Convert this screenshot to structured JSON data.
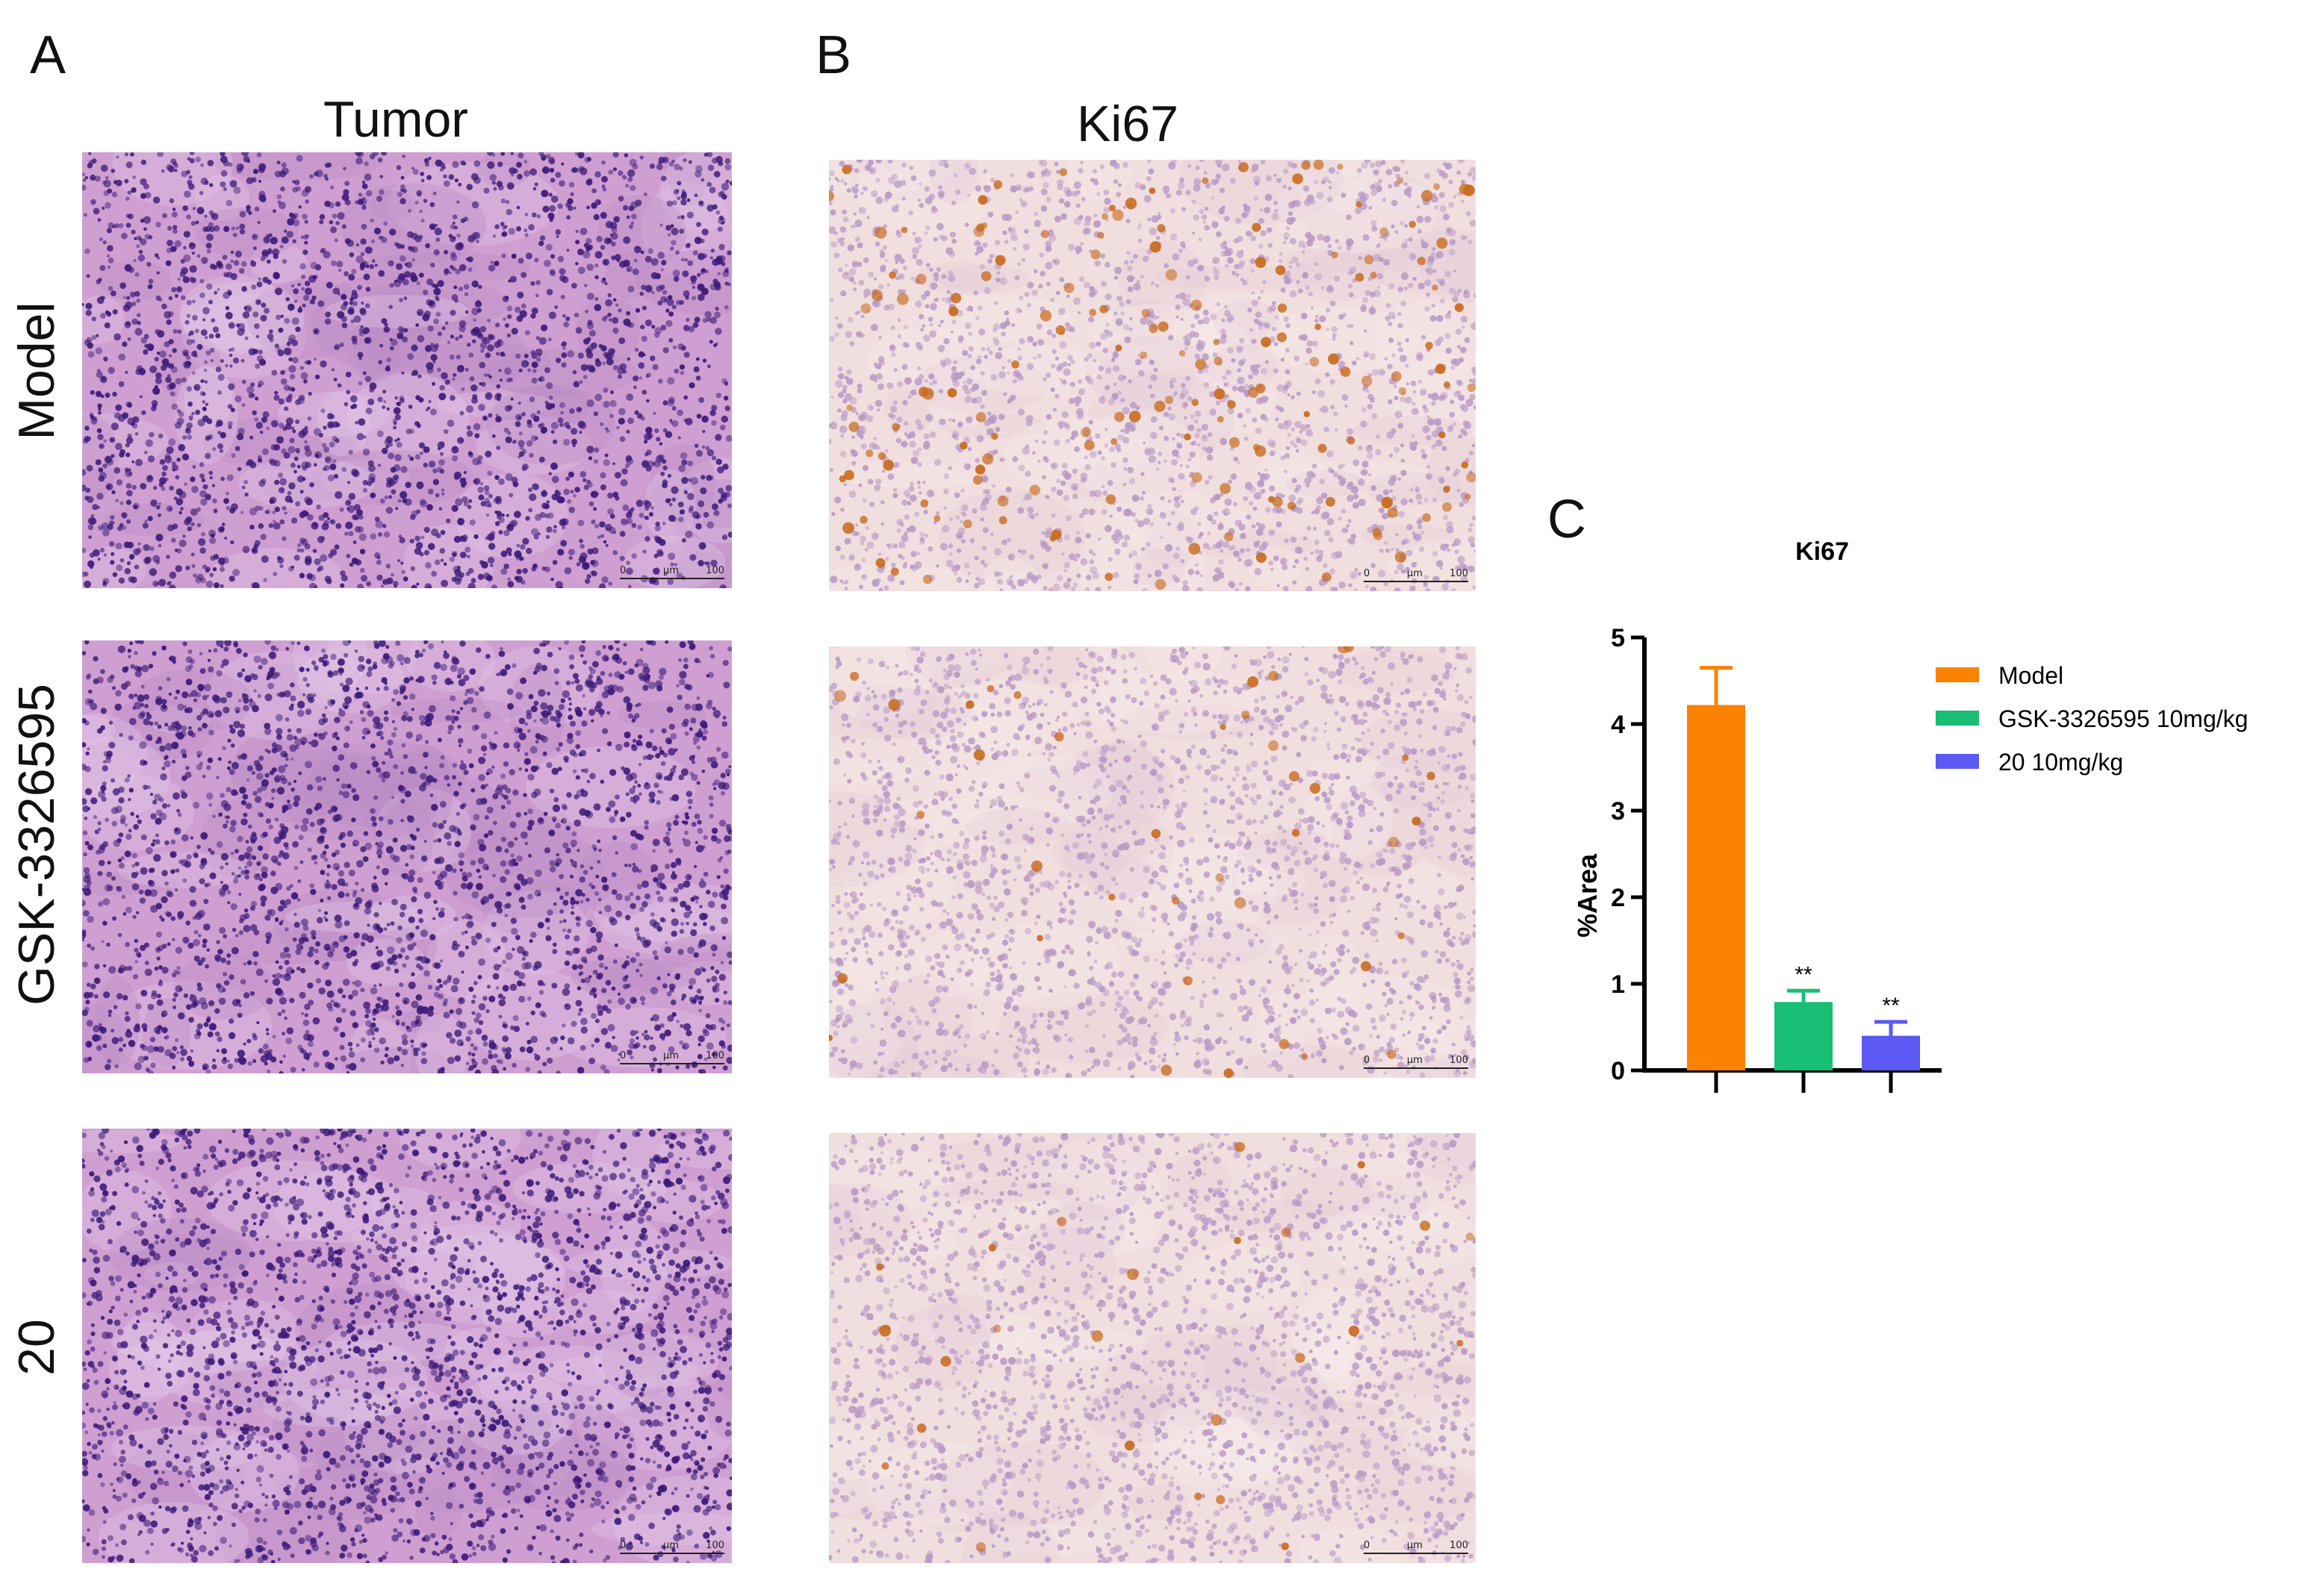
{
  "panels": {
    "a": {
      "letter": "A",
      "title": "Tumor"
    },
    "b": {
      "letter": "B",
      "title": "Ki67"
    },
    "c": {
      "letter": "C"
    }
  },
  "rows": [
    {
      "label": "Model"
    },
    {
      "label": "GSK-3326595"
    },
    {
      "label": "20"
    }
  ],
  "scalebar": {
    "left": "0",
    "unit": "μm",
    "right": "100"
  },
  "colors": {
    "he_background": "#cf9fd2",
    "he_nuclei": "#3c1a78",
    "ki67_background": "#f1dede",
    "ki67_positive": "#c86b1f",
    "ki67_nuclei": "#b99ac6"
  },
  "chart_data": {
    "type": "bar",
    "title": "Ki67",
    "ylabel": "%Area",
    "xlabel": "",
    "ylim": [
      0,
      5
    ],
    "yticks": [
      "0",
      "1",
      "2",
      "3",
      "4",
      "5"
    ],
    "categories": [
      "Model",
      "GSK-3326595 10mg/kg",
      "20 10mg/kg"
    ],
    "values": [
      4.22,
      0.79,
      0.4
    ],
    "errors": [
      0.43,
      0.13,
      0.16
    ],
    "colors": [
      "#fb8200",
      "#17be74",
      "#5b58f3"
    ],
    "annotations": [
      "",
      "**",
      "**"
    ],
    "legend": {
      "placement": "right",
      "entries": [
        "Model",
        "GSK-3326595 10mg/kg",
        "20 10mg/kg"
      ]
    },
    "grid": false
  }
}
